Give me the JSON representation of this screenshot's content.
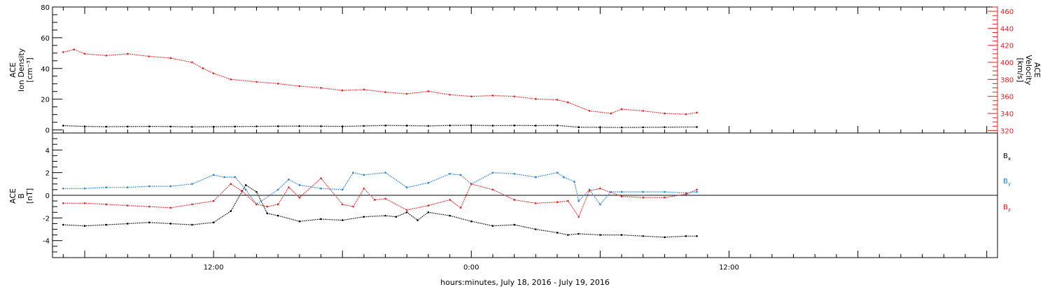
{
  "chart_data": [
    {
      "type": "scatter",
      "panel": "top",
      "ylabel_left": [
        "ACE",
        "Ion Density",
        "[cm⁻³]"
      ],
      "ylabel_right": [
        "ACE",
        "Velocity",
        "[km/s]"
      ],
      "ylim_left": [
        -2,
        80
      ],
      "ylim_right": [
        317,
        465
      ],
      "yticks_left": [
        "0",
        "20",
        "40",
        "60",
        "80"
      ],
      "yticks_right": [
        "320",
        "340",
        "360",
        "380",
        "400",
        "420",
        "440",
        "460"
      ],
      "series": [
        {
          "name": "Ion Density",
          "axis": "left",
          "color": "#000000",
          "x": [
            5.0,
            6.0,
            7.0,
            8.0,
            9.0,
            10.0,
            11.0,
            12.0,
            13.0,
            14.0,
            15.0,
            16.0,
            17.0,
            18.0,
            19.0,
            20.0,
            21.0,
            22.0,
            23.0,
            24.0,
            25.0,
            26.0,
            27.0,
            28.0,
            29.0,
            30.0,
            31.0,
            32.0,
            33.0,
            34.5
          ],
          "y": [
            2.8,
            2.3,
            2.1,
            2.2,
            2.3,
            2.2,
            2.0,
            2.1,
            2.2,
            2.3,
            2.4,
            2.5,
            2.4,
            2.3,
            2.6,
            2.9,
            2.8,
            2.6,
            2.9,
            3.0,
            2.8,
            2.9,
            2.8,
            2.9,
            1.8,
            1.7,
            1.6,
            1.7,
            1.8,
            1.9
          ]
        },
        {
          "name": "Velocity",
          "axis": "right",
          "color": "#e02020",
          "x": [
            5.0,
            5.5,
            6.0,
            7.0,
            8.0,
            9.0,
            10.0,
            11.0,
            11.5,
            12.0,
            12.8,
            14.0,
            15.0,
            16.0,
            17.0,
            18.0,
            19.0,
            20.0,
            21.0,
            22.0,
            23.0,
            24.0,
            25.0,
            26.0,
            27.0,
            28.0,
            28.5,
            29.5,
            30.5,
            31.0,
            32.0,
            33.0,
            34.0,
            34.5
          ],
          "y": [
            412,
            415,
            410,
            408,
            410,
            407,
            405,
            400,
            393,
            387,
            380,
            377,
            375,
            372,
            370,
            367,
            368,
            365,
            363,
            366,
            362,
            360,
            361,
            360,
            357,
            356,
            353,
            343,
            340,
            345,
            343,
            340,
            339,
            341
          ]
        }
      ]
    },
    {
      "type": "scatter",
      "panel": "bottom",
      "ylabel_left": [
        "ACE",
        "B",
        "[nT]"
      ],
      "ylim": [
        -5.5,
        5.5
      ],
      "yticks": [
        "-4",
        "-2",
        "0",
        "2",
        "4"
      ],
      "series": [
        {
          "name": "Bx",
          "color": "#000000",
          "x": [
            5.0,
            6.0,
            7.0,
            8.0,
            9.0,
            10.0,
            11.0,
            12.0,
            12.8,
            13.5,
            14.0,
            14.5,
            15.0,
            16.0,
            17.0,
            18.0,
            19.0,
            20.0,
            20.5,
            21.0,
            21.5,
            22.0,
            23.0,
            24.0,
            25.0,
            26.0,
            27.0,
            28.0,
            28.5,
            29.0,
            30.0,
            31.0,
            32.0,
            33.0,
            34.0,
            34.5
          ],
          "y": [
            -2.6,
            -2.7,
            -2.6,
            -2.5,
            -2.4,
            -2.5,
            -2.6,
            -2.4,
            -1.4,
            0.9,
            0.3,
            -1.6,
            -1.8,
            -2.3,
            -2.1,
            -2.2,
            -1.9,
            -1.8,
            -1.9,
            -1.5,
            -2.2,
            -1.5,
            -1.8,
            -2.3,
            -2.7,
            -2.6,
            -3.0,
            -3.3,
            -3.5,
            -3.4,
            -3.5,
            -3.5,
            -3.6,
            -3.7,
            -3.6,
            -3.6
          ]
        },
        {
          "name": "By",
          "color": "#1f7fd8",
          "x": [
            5.0,
            6.0,
            7.0,
            8.0,
            9.0,
            10.0,
            11.0,
            12.0,
            12.5,
            13.0,
            13.5,
            14.0,
            15.0,
            15.5,
            16.0,
            17.0,
            18.0,
            18.5,
            19.0,
            20.0,
            21.0,
            22.0,
            23.0,
            23.5,
            24.0,
            25.0,
            26.0,
            27.0,
            28.0,
            28.3,
            28.8,
            29.0,
            29.5,
            30.0,
            30.5,
            31.0,
            32.0,
            33.0,
            34.0,
            34.5
          ],
          "y": [
            0.6,
            0.6,
            0.7,
            0.7,
            0.8,
            0.8,
            1.0,
            1.8,
            1.6,
            1.6,
            0.5,
            -0.8,
            0.5,
            1.4,
            0.9,
            0.6,
            0.5,
            2.0,
            1.8,
            2.0,
            0.7,
            1.1,
            1.9,
            1.8,
            1.0,
            2.0,
            1.9,
            1.6,
            2.0,
            1.6,
            1.2,
            -0.5,
            0.5,
            -0.8,
            0.3,
            0.3,
            0.3,
            0.3,
            0.2,
            0.3
          ]
        },
        {
          "name": "Bz",
          "color": "#e02020",
          "x": [
            5.0,
            6.0,
            7.0,
            8.0,
            9.0,
            10.0,
            11.0,
            12.0,
            12.8,
            13.3,
            14.0,
            14.5,
            15.0,
            15.5,
            16.0,
            17.0,
            18.0,
            18.5,
            19.0,
            19.5,
            20.0,
            21.0,
            22.0,
            23.0,
            23.5,
            24.0,
            25.0,
            26.0,
            27.0,
            28.0,
            28.5,
            29.0,
            29.5,
            30.0,
            31.0,
            32.0,
            33.0,
            34.0,
            34.5
          ],
          "y": [
            -0.7,
            -0.7,
            -0.8,
            -0.9,
            -1.0,
            -1.1,
            -0.8,
            -0.5,
            1.0,
            0.4,
            -0.8,
            -1.0,
            -0.8,
            0.7,
            -0.2,
            1.5,
            -0.8,
            -1.0,
            0.6,
            -0.4,
            -0.3,
            -1.3,
            -0.9,
            -0.4,
            -1.1,
            1.0,
            0.5,
            -0.4,
            -0.7,
            -0.6,
            -0.5,
            -1.9,
            0.4,
            0.6,
            -0.1,
            -0.2,
            -0.2,
            0.1,
            0.5
          ]
        }
      ]
    }
  ],
  "legend": {
    "bx": {
      "letter": "B",
      "sub": "x",
      "color": "#000000"
    },
    "by": {
      "letter": "B",
      "sub": "y",
      "color": "#1f7fd8"
    },
    "bz": {
      "letter": "B",
      "sub": "z",
      "color": "#e02020"
    }
  },
  "x_axis": {
    "label": "hours:minutes, July 18, 2016 - July 19, 2016",
    "range_hours": [
      4.5,
      48.5
    ],
    "ticks": [
      {
        "hour": 12,
        "label": "12:00"
      },
      {
        "hour": 24,
        "label": "0:00"
      },
      {
        "hour": 36,
        "label": "12:00"
      }
    ]
  },
  "colors": {
    "axes": "#000000",
    "left_axis": "#000000",
    "right_axis": "#e02020"
  }
}
